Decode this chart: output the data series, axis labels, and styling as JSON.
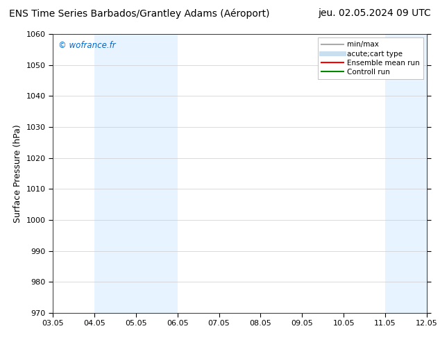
{
  "title_left": "ENS Time Series Barbados/Grantley Adams (Aéroport)",
  "title_right": "jeu. 02.05.2024 09 UTC",
  "ylabel": "Surface Pressure (hPa)",
  "ylim": [
    970,
    1060
  ],
  "yticks": [
    970,
    980,
    990,
    1000,
    1010,
    1020,
    1030,
    1040,
    1050,
    1060
  ],
  "xtick_labels": [
    "03.05",
    "04.05",
    "05.05",
    "06.05",
    "07.05",
    "08.05",
    "09.05",
    "10.05",
    "11.05",
    "12.05"
  ],
  "watermark": "© wofrance.fr",
  "watermark_color": "#0066cc",
  "bg_color": "#ffffff",
  "plot_bg_color": "#ffffff",
  "shaded_bands": [
    {
      "xstart": 1.0,
      "xend": 3.0,
      "color": "#ddeeff",
      "alpha": 0.7
    },
    {
      "xstart": 8.0,
      "xend": 9.5,
      "color": "#ddeeff",
      "alpha": 0.7
    }
  ],
  "legend_entries": [
    {
      "label": "min/max",
      "color": "#aaaaaa",
      "lw": 1.5
    },
    {
      "label": "acute;cart type",
      "color": "#c8dff0",
      "lw": 5
    },
    {
      "label": "Ensemble mean run",
      "color": "#ff0000",
      "lw": 1.5
    },
    {
      "label": "Controll run",
      "color": "#008800",
      "lw": 1.5
    }
  ],
  "grid_color": "#cccccc",
  "spine_color": "#333333",
  "title_fontsize": 10,
  "tick_fontsize": 8,
  "ylabel_fontsize": 9,
  "legend_fontsize": 7.5
}
